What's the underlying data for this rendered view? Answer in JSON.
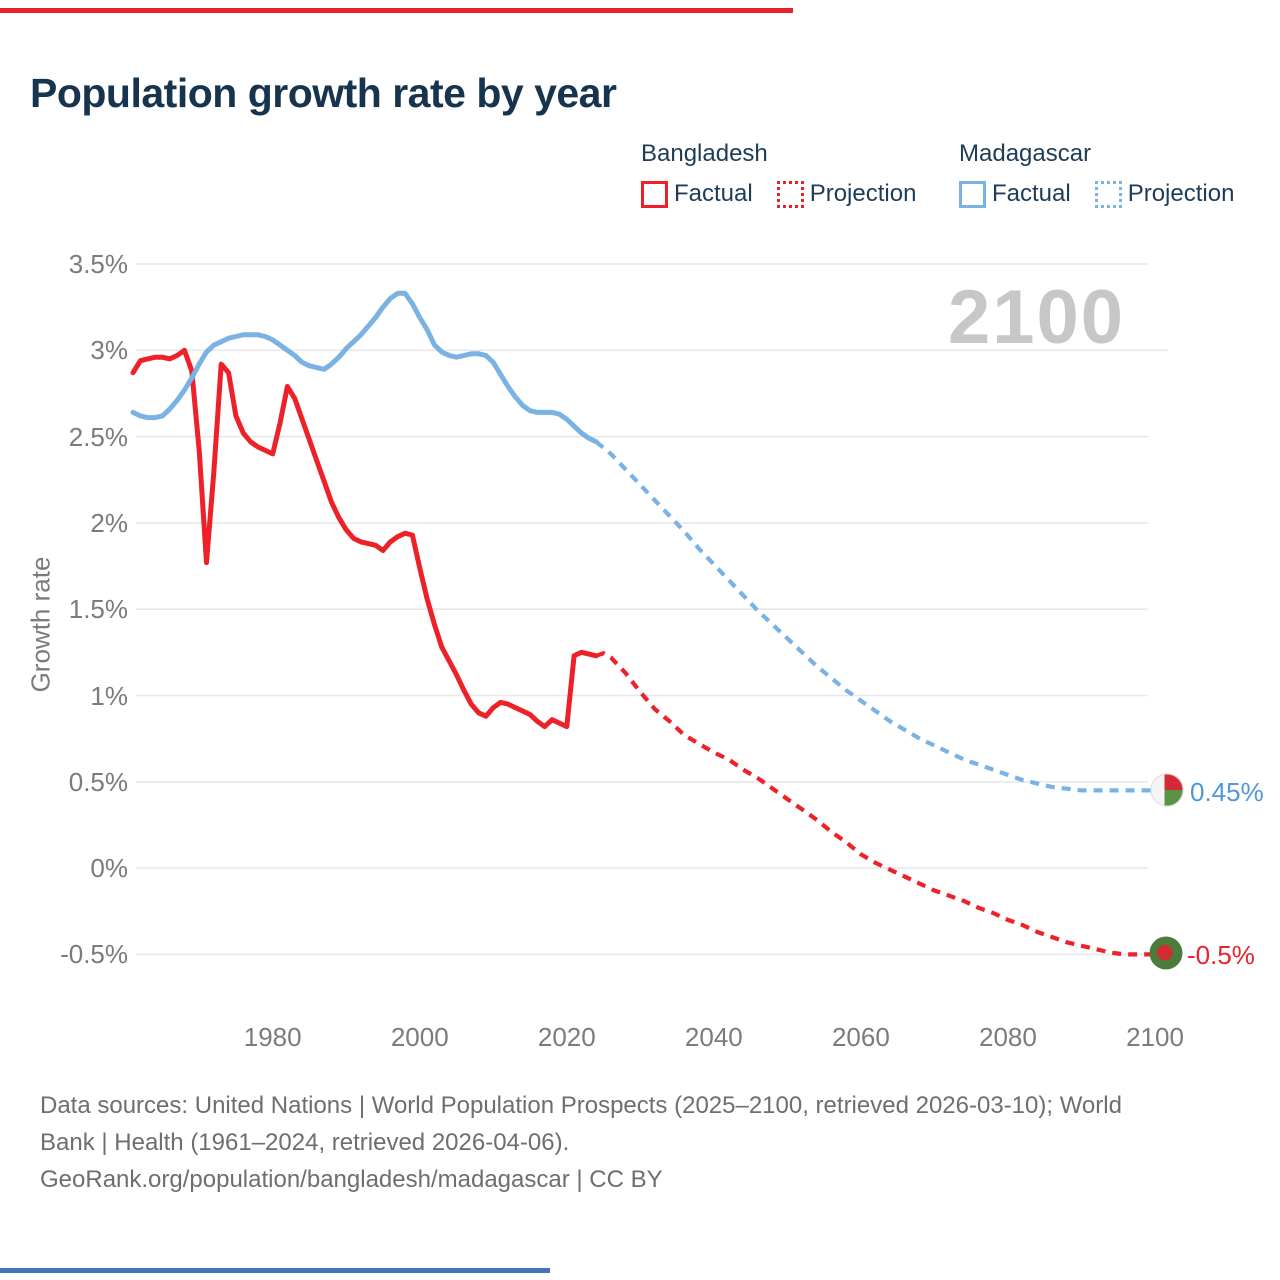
{
  "header": {
    "title": "Population growth rate by year"
  },
  "accents": {
    "top_bar_color": "#e8232d",
    "bottom_bar_color": "#4374b8"
  },
  "legend": {
    "groups": [
      {
        "country": "Bangladesh",
        "color": "#ee2129",
        "factual_label": "Factual",
        "projection_label": "Projection"
      },
      {
        "country": "Madagascar",
        "color": "#7ab2e4",
        "factual_label": "Factual",
        "projection_label": "Projection"
      }
    ]
  },
  "watermark": "2100",
  "axis": {
    "ylabel": "Growth rate"
  },
  "end_labels": {
    "madagascar": {
      "text": "0.45%",
      "color": "#4f97db"
    },
    "bangladesh": {
      "text": "-0.5%",
      "color": "#e8232d"
    }
  },
  "footer": {
    "line1": "Data sources: United Nations | World Population Prospects (2025–2100, retrieved 2026-03-10); World",
    "line2": "Bank | Health (1961–2024, retrieved 2026-04-06).",
    "line3": "GeoRank.org/population/bangladesh/madagascar | CC BY"
  },
  "chart_data": {
    "type": "line",
    "title": "Population growth rate by year",
    "xlabel": "",
    "ylabel": "Growth rate",
    "grid": true,
    "legend_position": "top-right",
    "x_range": [
      1961,
      2100
    ],
    "ylim": [
      -0.5,
      3.5
    ],
    "x_ticks": [
      1980,
      2000,
      2020,
      2040,
      2060,
      2080,
      2100
    ],
    "y_ticks": [
      {
        "value": 3.5,
        "label": "3.5%"
      },
      {
        "value": 3.0,
        "label": "3%"
      },
      {
        "value": 2.5,
        "label": "2.5%"
      },
      {
        "value": 2.0,
        "label": "2%"
      },
      {
        "value": 1.5,
        "label": "1.5%"
      },
      {
        "value": 1.0,
        "label": "1%"
      },
      {
        "value": 0.5,
        "label": "0.5%"
      },
      {
        "value": 0.0,
        "label": "0%"
      },
      {
        "value": -0.5,
        "label": "-0.5%"
      }
    ],
    "series": [
      {
        "name": "Bangladesh Factual",
        "slug": "bangladesh-factual",
        "color": "#ee2129",
        "style": "solid",
        "points": [
          [
            1961,
            2.87
          ],
          [
            1962,
            2.94
          ],
          [
            1963,
            2.95
          ],
          [
            1964,
            2.96
          ],
          [
            1965,
            2.96
          ],
          [
            1966,
            2.95
          ],
          [
            1967,
            2.97
          ],
          [
            1968,
            3.0
          ],
          [
            1969,
            2.88
          ],
          [
            1970,
            2.42
          ],
          [
            1971,
            1.77
          ],
          [
            1972,
            2.3
          ],
          [
            1973,
            2.92
          ],
          [
            1974,
            2.87
          ],
          [
            1975,
            2.62
          ],
          [
            1976,
            2.52
          ],
          [
            1977,
            2.47
          ],
          [
            1978,
            2.44
          ],
          [
            1979,
            2.42
          ],
          [
            1980,
            2.4
          ],
          [
            1981,
            2.58
          ],
          [
            1982,
            2.79
          ],
          [
            1983,
            2.72
          ],
          [
            1984,
            2.6
          ],
          [
            1985,
            2.48
          ],
          [
            1986,
            2.36
          ],
          [
            1987,
            2.24
          ],
          [
            1988,
            2.12
          ],
          [
            1989,
            2.03
          ],
          [
            1990,
            1.96
          ],
          [
            1991,
            1.91
          ],
          [
            1992,
            1.89
          ],
          [
            1993,
            1.88
          ],
          [
            1994,
            1.87
          ],
          [
            1995,
            1.84
          ],
          [
            1996,
            1.89
          ],
          [
            1997,
            1.92
          ],
          [
            1998,
            1.94
          ],
          [
            1999,
            1.93
          ],
          [
            2000,
            1.74
          ],
          [
            2001,
            1.56
          ],
          [
            2002,
            1.41
          ],
          [
            2003,
            1.28
          ],
          [
            2004,
            1.2
          ],
          [
            2005,
            1.12
          ],
          [
            2006,
            1.03
          ],
          [
            2007,
            0.95
          ],
          [
            2008,
            0.9
          ],
          [
            2009,
            0.88
          ],
          [
            2010,
            0.93
          ],
          [
            2011,
            0.96
          ],
          [
            2012,
            0.95
          ],
          [
            2013,
            0.93
          ],
          [
            2014,
            0.91
          ],
          [
            2015,
            0.89
          ],
          [
            2016,
            0.85
          ],
          [
            2017,
            0.82
          ],
          [
            2018,
            0.86
          ],
          [
            2019,
            0.84
          ],
          [
            2020,
            0.82
          ],
          [
            2021,
            1.23
          ],
          [
            2022,
            1.25
          ],
          [
            2023,
            1.24
          ],
          [
            2024,
            1.23
          ]
        ]
      },
      {
        "name": "Bangladesh Projection",
        "slug": "bangladesh-projection",
        "color": "#ee2129",
        "style": "dotted",
        "points": [
          [
            2024,
            1.23
          ],
          [
            2025,
            1.245
          ],
          [
            2026,
            1.22
          ],
          [
            2028,
            1.13
          ],
          [
            2030,
            1.02
          ],
          [
            2032,
            0.92
          ],
          [
            2034,
            0.85
          ],
          [
            2036,
            0.77
          ],
          [
            2038,
            0.72
          ],
          [
            2040,
            0.67
          ],
          [
            2042,
            0.63
          ],
          [
            2044,
            0.57
          ],
          [
            2046,
            0.52
          ],
          [
            2048,
            0.46
          ],
          [
            2050,
            0.4
          ],
          [
            2052,
            0.34
          ],
          [
            2054,
            0.28
          ],
          [
            2056,
            0.21
          ],
          [
            2058,
            0.15
          ],
          [
            2060,
            0.08
          ],
          [
            2062,
            0.03
          ],
          [
            2064,
            -0.01
          ],
          [
            2066,
            -0.05
          ],
          [
            2068,
            -0.09
          ],
          [
            2070,
            -0.13
          ],
          [
            2072,
            -0.16
          ],
          [
            2074,
            -0.19
          ],
          [
            2076,
            -0.23
          ],
          [
            2078,
            -0.26
          ],
          [
            2080,
            -0.3
          ],
          [
            2082,
            -0.33
          ],
          [
            2084,
            -0.37
          ],
          [
            2086,
            -0.4
          ],
          [
            2088,
            -0.43
          ],
          [
            2090,
            -0.45
          ],
          [
            2092,
            -0.47
          ],
          [
            2094,
            -0.49
          ],
          [
            2096,
            -0.5
          ],
          [
            2098,
            -0.5
          ],
          [
            2100,
            -0.5
          ]
        ]
      },
      {
        "name": "Madagascar Factual",
        "slug": "madagascar-factual",
        "color": "#7ab2e4",
        "style": "solid",
        "points": [
          [
            1961,
            2.64
          ],
          [
            1962,
            2.62
          ],
          [
            1963,
            2.61
          ],
          [
            1964,
            2.61
          ],
          [
            1965,
            2.62
          ],
          [
            1966,
            2.66
          ],
          [
            1967,
            2.71
          ],
          [
            1968,
            2.77
          ],
          [
            1969,
            2.84
          ],
          [
            1970,
            2.92
          ],
          [
            1971,
            2.99
          ],
          [
            1972,
            3.03
          ],
          [
            1973,
            3.05
          ],
          [
            1974,
            3.07
          ],
          [
            1975,
            3.08
          ],
          [
            1976,
            3.09
          ],
          [
            1977,
            3.09
          ],
          [
            1978,
            3.09
          ],
          [
            1979,
            3.08
          ],
          [
            1980,
            3.06
          ],
          [
            1981,
            3.03
          ],
          [
            1982,
            3.0
          ],
          [
            1983,
            2.97
          ],
          [
            1984,
            2.93
          ],
          [
            1985,
            2.91
          ],
          [
            1986,
            2.9
          ],
          [
            1987,
            2.89
          ],
          [
            1988,
            2.92
          ],
          [
            1989,
            2.96
          ],
          [
            1990,
            3.01
          ],
          [
            1991,
            3.05
          ],
          [
            1992,
            3.09
          ],
          [
            1993,
            3.14
          ],
          [
            1994,
            3.19
          ],
          [
            1995,
            3.25
          ],
          [
            1996,
            3.3
          ],
          [
            1997,
            3.33
          ],
          [
            1998,
            3.33
          ],
          [
            1999,
            3.27
          ],
          [
            2000,
            3.19
          ],
          [
            2001,
            3.12
          ],
          [
            2002,
            3.03
          ],
          [
            2003,
            2.99
          ],
          [
            2004,
            2.97
          ],
          [
            2005,
            2.96
          ],
          [
            2006,
            2.97
          ],
          [
            2007,
            2.98
          ],
          [
            2008,
            2.98
          ],
          [
            2009,
            2.97
          ],
          [
            2010,
            2.93
          ],
          [
            2011,
            2.86
          ],
          [
            2012,
            2.79
          ],
          [
            2013,
            2.73
          ],
          [
            2014,
            2.68
          ],
          [
            2015,
            2.65
          ],
          [
            2016,
            2.64
          ],
          [
            2017,
            2.64
          ],
          [
            2018,
            2.64
          ],
          [
            2019,
            2.63
          ],
          [
            2020,
            2.6
          ],
          [
            2021,
            2.56
          ],
          [
            2022,
            2.52
          ],
          [
            2023,
            2.49
          ],
          [
            2024,
            2.47
          ]
        ]
      },
      {
        "name": "Madagascar Projection",
        "slug": "madagascar-projection",
        "color": "#7ab2e4",
        "style": "dotted",
        "points": [
          [
            2024,
            2.47
          ],
          [
            2026,
            2.4
          ],
          [
            2028,
            2.31
          ],
          [
            2030,
            2.22
          ],
          [
            2032,
            2.13
          ],
          [
            2034,
            2.04
          ],
          [
            2036,
            1.95
          ],
          [
            2038,
            1.85
          ],
          [
            2040,
            1.76
          ],
          [
            2042,
            1.67
          ],
          [
            2044,
            1.58
          ],
          [
            2046,
            1.49
          ],
          [
            2048,
            1.41
          ],
          [
            2050,
            1.33
          ],
          [
            2052,
            1.25
          ],
          [
            2054,
            1.17
          ],
          [
            2056,
            1.1
          ],
          [
            2058,
            1.03
          ],
          [
            2060,
            0.97
          ],
          [
            2062,
            0.91
          ],
          [
            2064,
            0.85
          ],
          [
            2066,
            0.8
          ],
          [
            2068,
            0.75
          ],
          [
            2070,
            0.71
          ],
          [
            2072,
            0.67
          ],
          [
            2074,
            0.63
          ],
          [
            2076,
            0.6
          ],
          [
            2078,
            0.57
          ],
          [
            2080,
            0.54
          ],
          [
            2082,
            0.51
          ],
          [
            2084,
            0.49
          ],
          [
            2086,
            0.47
          ],
          [
            2088,
            0.46
          ],
          [
            2090,
            0.45
          ],
          [
            2092,
            0.45
          ],
          [
            2094,
            0.45
          ],
          [
            2096,
            0.45
          ],
          [
            2098,
            0.45
          ],
          [
            2100,
            0.45
          ]
        ]
      }
    ],
    "end_markers": [
      {
        "country": "Madagascar",
        "year": 2100,
        "value": 0.45,
        "label": "0.45%"
      },
      {
        "country": "Bangladesh",
        "year": 2100,
        "value": -0.5,
        "label": "-0.5%"
      }
    ]
  }
}
